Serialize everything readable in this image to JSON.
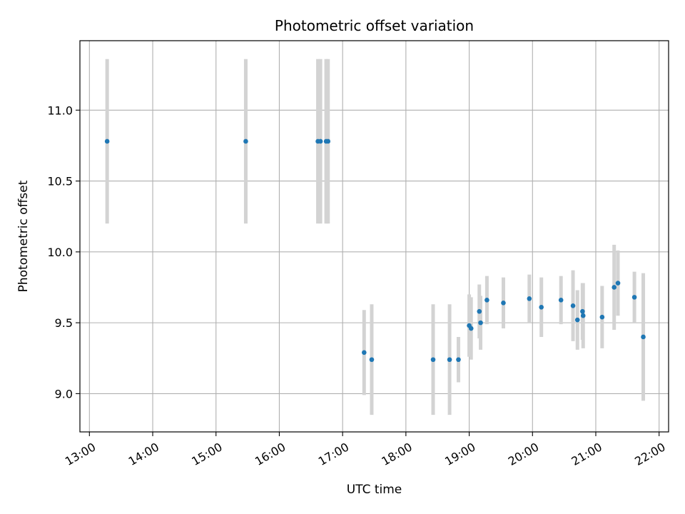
{
  "chart_data": {
    "type": "scatter",
    "title": "Photometric offset variation",
    "xlabel": "UTC time",
    "ylabel": "Photometric offset",
    "x_unit": "UTC hours",
    "xlim": [
      12.85,
      22.15
    ],
    "ylim": [
      8.73,
      11.49
    ],
    "x_ticks": [
      13,
      14,
      15,
      16,
      17,
      18,
      19,
      20,
      21,
      22
    ],
    "x_tick_labels": [
      "13:00",
      "14:00",
      "15:00",
      "16:00",
      "17:00",
      "18:00",
      "19:00",
      "20:00",
      "21:00",
      "22:00"
    ],
    "y_ticks": [
      9.0,
      9.5,
      10.0,
      10.5,
      11.0
    ],
    "y_tick_labels": [
      "9.0",
      "9.5",
      "10.0",
      "10.5",
      "11.0"
    ],
    "grid": true,
    "legend": "none",
    "colors": {
      "marker": "#1f77b4",
      "errorbar": "#d3d3d3",
      "grid": "#b0b0b0"
    },
    "points": [
      {
        "x": 13.28,
        "y": 10.78,
        "err": 0.58
      },
      {
        "x": 15.47,
        "y": 10.78,
        "err": 0.58
      },
      {
        "x": 16.61,
        "y": 10.78,
        "err": 0.58
      },
      {
        "x": 16.65,
        "y": 10.78,
        "err": 0.58
      },
      {
        "x": 16.74,
        "y": 10.78,
        "err": 0.58
      },
      {
        "x": 16.77,
        "y": 10.78,
        "err": 0.58
      },
      {
        "x": 17.34,
        "y": 9.29,
        "err": 0.3
      },
      {
        "x": 17.46,
        "y": 9.24,
        "err": 0.39
      },
      {
        "x": 18.43,
        "y": 9.24,
        "err": 0.39
      },
      {
        "x": 18.69,
        "y": 9.24,
        "err": 0.39
      },
      {
        "x": 18.83,
        "y": 9.24,
        "err": 0.16
      },
      {
        "x": 19.0,
        "y": 9.48,
        "err": 0.22
      },
      {
        "x": 19.03,
        "y": 9.46,
        "err": 0.22
      },
      {
        "x": 19.16,
        "y": 9.58,
        "err": 0.19
      },
      {
        "x": 19.18,
        "y": 9.5,
        "err": 0.19
      },
      {
        "x": 19.28,
        "y": 9.66,
        "err": 0.17
      },
      {
        "x": 19.54,
        "y": 9.64,
        "err": 0.18
      },
      {
        "x": 19.95,
        "y": 9.67,
        "err": 0.17
      },
      {
        "x": 20.14,
        "y": 9.61,
        "err": 0.21
      },
      {
        "x": 20.45,
        "y": 9.66,
        "err": 0.17
      },
      {
        "x": 20.64,
        "y": 9.62,
        "err": 0.25
      },
      {
        "x": 20.71,
        "y": 9.52,
        "err": 0.21
      },
      {
        "x": 20.79,
        "y": 9.58,
        "err": 0.2
      },
      {
        "x": 20.8,
        "y": 9.55,
        "err": 0.23
      },
      {
        "x": 21.1,
        "y": 9.54,
        "err": 0.22
      },
      {
        "x": 21.29,
        "y": 9.75,
        "err": 0.3
      },
      {
        "x": 21.35,
        "y": 9.78,
        "err": 0.23
      },
      {
        "x": 21.61,
        "y": 9.68,
        "err": 0.18
      },
      {
        "x": 21.75,
        "y": 9.4,
        "err": 0.45
      }
    ]
  }
}
